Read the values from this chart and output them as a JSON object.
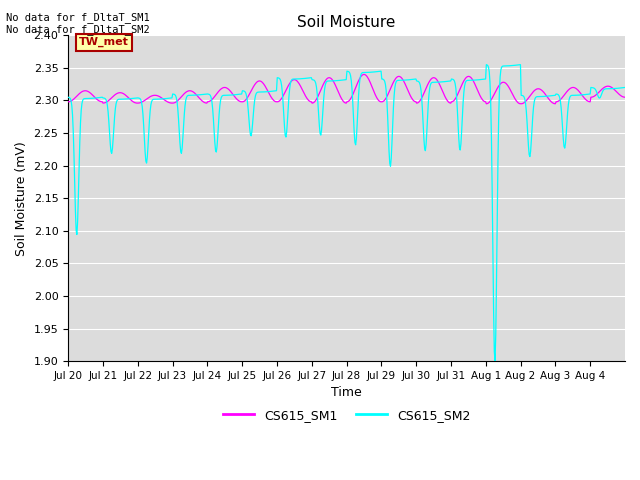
{
  "title": "Soil Moisture",
  "xlabel": "Time",
  "ylabel": "Soil Moisture (mV)",
  "ylim": [
    1.9,
    2.4
  ],
  "ytick_values": [
    1.9,
    1.95,
    2.0,
    2.05,
    2.1,
    2.15,
    2.2,
    2.25,
    2.3,
    2.35,
    2.4
  ],
  "color_sm1": "#FF00FF",
  "color_sm2": "#00FFFF",
  "bg_color": "#DCDCDC",
  "annotation_text1": "No data for f_DltaT_SM1",
  "annotation_text2": "No data for f_DltaT_SM2",
  "legend_label_sm1": "CS615_SM1",
  "legend_label_sm2": "CS615_SM2",
  "tw_met_label": "TW_met",
  "tw_met_color": "#AA0000",
  "tw_met_bg": "#FFFFAA",
  "x_tick_labels": [
    "Jul 20",
    "Jul 21",
    "Jul 22",
    "Jul 23",
    "Jul 24",
    "Jul 25",
    "Jul 26",
    "Jul 27",
    "Jul 28",
    "Jul 29",
    "Jul 30",
    "Jul 31",
    "Aug 1",
    "Aug 2",
    "Aug 3",
    "Aug 4"
  ],
  "n_days": 16,
  "sm1_peaks": [
    2.315,
    2.312,
    2.308,
    2.315,
    2.32,
    2.33,
    2.332,
    2.335,
    2.34,
    2.337,
    2.335,
    2.337,
    2.328,
    2.318,
    2.32,
    2.322
  ],
  "sm1_troughs": [
    2.298,
    2.296,
    2.296,
    2.296,
    2.298,
    2.298,
    2.298,
    2.296,
    2.298,
    2.298,
    2.296,
    2.298,
    2.295,
    2.295,
    2.298,
    2.305
  ],
  "sm2_peaks": [
    2.305,
    2.304,
    2.304,
    2.31,
    2.31,
    2.315,
    2.335,
    2.332,
    2.345,
    2.333,
    2.33,
    2.333,
    2.355,
    2.308,
    2.31,
    2.32
  ],
  "sm2_troughs": [
    2.095,
    2.22,
    2.205,
    2.22,
    2.222,
    2.247,
    2.245,
    2.248,
    2.233,
    2.2,
    2.224,
    2.225,
    1.9,
    2.215,
    2.228,
    2.305
  ]
}
